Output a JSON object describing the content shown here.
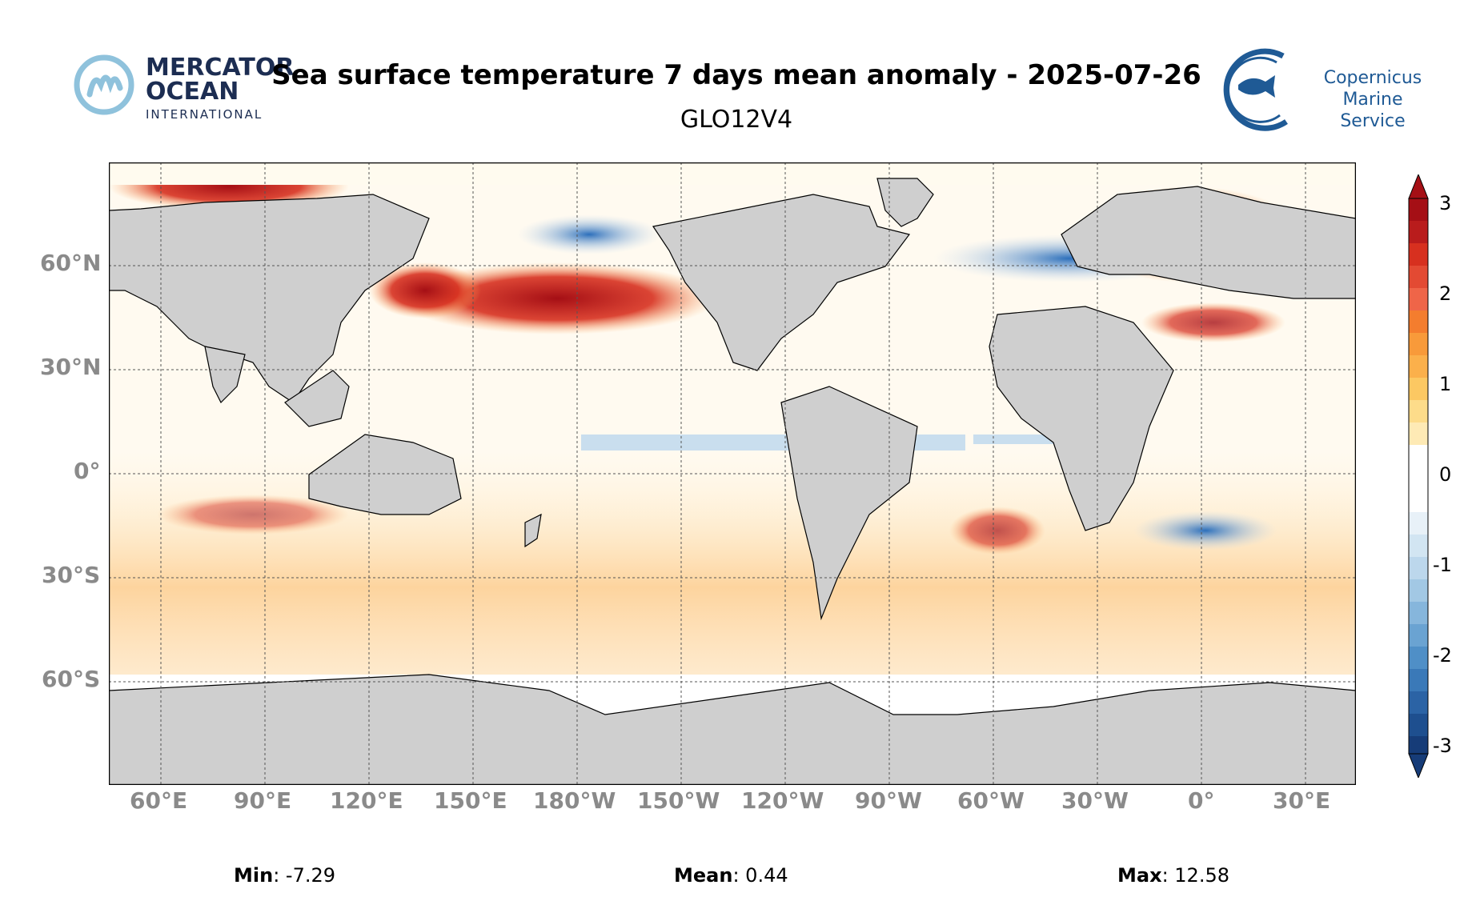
{
  "header": {
    "title": "Sea surface temperature 7 days mean anomaly - 2025-07-26",
    "subtitle": "GLO12V4"
  },
  "logo_left": {
    "line1": "MERCATOR",
    "line2": "OCEAN",
    "line3": "INTERNATIONAL"
  },
  "logo_right": {
    "line1": "Copernicus",
    "line2": "Marine Service"
  },
  "axes": {
    "lat_labels": [
      "60°N",
      "30°N",
      "0°",
      "30°S",
      "60°S"
    ],
    "lon_labels": [
      "60°E",
      "90°E",
      "120°E",
      "150°E",
      "180°W",
      "150°W",
      "120°W",
      "90°W",
      "60°W",
      "30°W",
      "0°",
      "30°E"
    ]
  },
  "colorbar": {
    "ticks": [
      "3",
      "2",
      "1",
      "0",
      "-1",
      "-2",
      "-3"
    ],
    "min": -3,
    "max": 3
  },
  "stats": {
    "min_label": "Min",
    "min_value": ": -7.29",
    "mean_label": "Mean",
    "mean_value": ": 0.44",
    "max_label": "Max",
    "max_value": ": 12.58"
  },
  "colors": {
    "land": "#cfcfcf",
    "warm_strong": "#b01515",
    "warm": "#ef8a2b",
    "warm_light": "#fde3a8",
    "cold": "#3f7fc4",
    "cold_light": "#c7dff0"
  }
}
